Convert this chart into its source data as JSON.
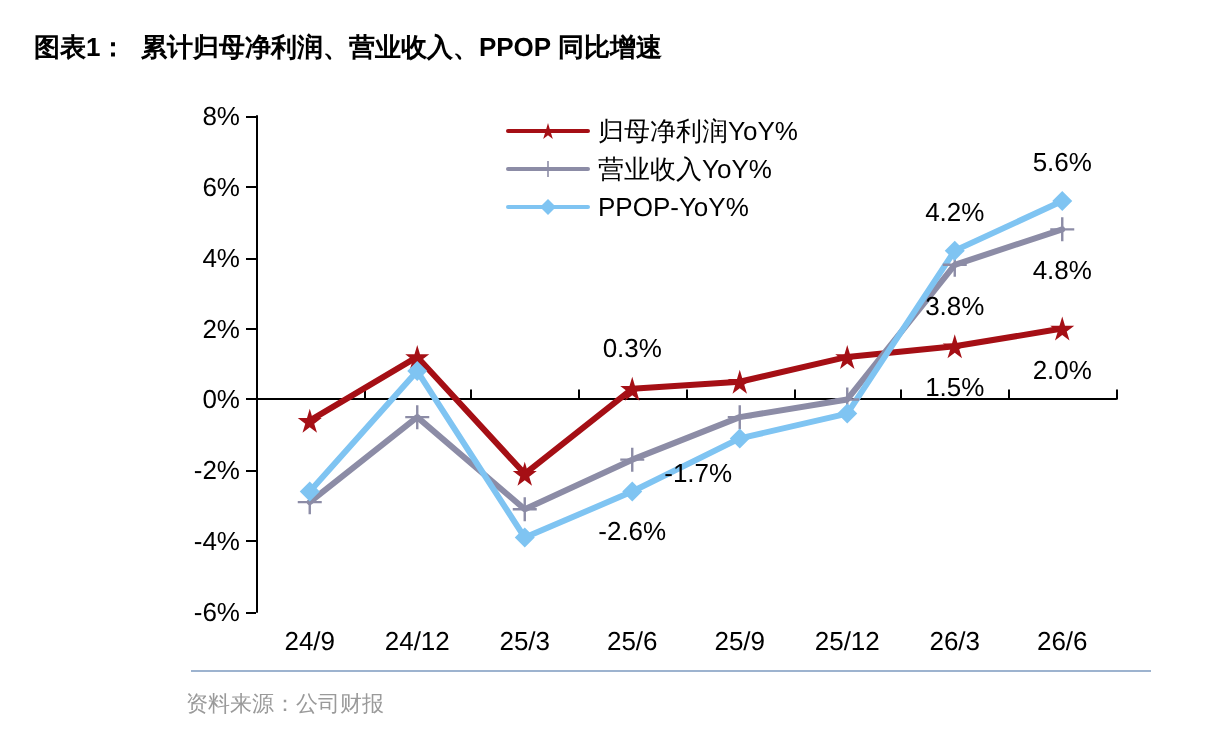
{
  "chart_data": {
    "type": "line",
    "title": "图表1：  累计归母净利润、营业收入、PPOP 同比增速",
    "annotations": [
      "资料来源：公司财报"
    ],
    "categories": [
      "24/9",
      "24/12",
      "25/3",
      "25/6",
      "25/9",
      "25/12",
      "26/3",
      "26/6"
    ],
    "series": [
      {
        "name": "归母净利润YoY%",
        "color": "#a50f15",
        "marker": "star",
        "values": [
          -0.6,
          1.2,
          -2.1,
          0.3,
          0.5,
          1.2,
          1.5,
          2.0
        ],
        "value_labels": [
          null,
          null,
          null,
          "0.3%",
          null,
          null,
          "1.5%",
          "2.0%"
        ]
      },
      {
        "name": "营业收入YoY%",
        "color": "#8c8ca6",
        "marker": "cross",
        "values": [
          -2.9,
          -0.5,
          -3.1,
          -1.7,
          -0.5,
          0.0,
          3.8,
          4.8
        ],
        "value_labels": [
          null,
          null,
          null,
          "-1.7%",
          null,
          null,
          "3.8%",
          "4.8%"
        ]
      },
      {
        "name": "PPOP-YoY%",
        "color": "#7fc4f2",
        "marker": "diamond",
        "values": [
          -2.6,
          0.8,
          -3.9,
          -2.6,
          -1.1,
          -0.4,
          4.2,
          5.6
        ],
        "value_labels": [
          null,
          null,
          null,
          "-2.6%",
          null,
          null,
          "4.2%",
          "5.6%"
        ]
      }
    ],
    "ylim": [
      -6,
      8
    ],
    "yticks": [
      {
        "value": -6,
        "label": "-6%"
      },
      {
        "value": -4,
        "label": "-4%"
      },
      {
        "value": -2,
        "label": "-2%"
      },
      {
        "value": 0,
        "label": "0%"
      },
      {
        "value": 2,
        "label": "2%"
      },
      {
        "value": 4,
        "label": "4%"
      },
      {
        "value": 6,
        "label": "6%"
      },
      {
        "value": 8,
        "label": "8%"
      }
    ],
    "legend": "top",
    "line_style": "solid"
  }
}
